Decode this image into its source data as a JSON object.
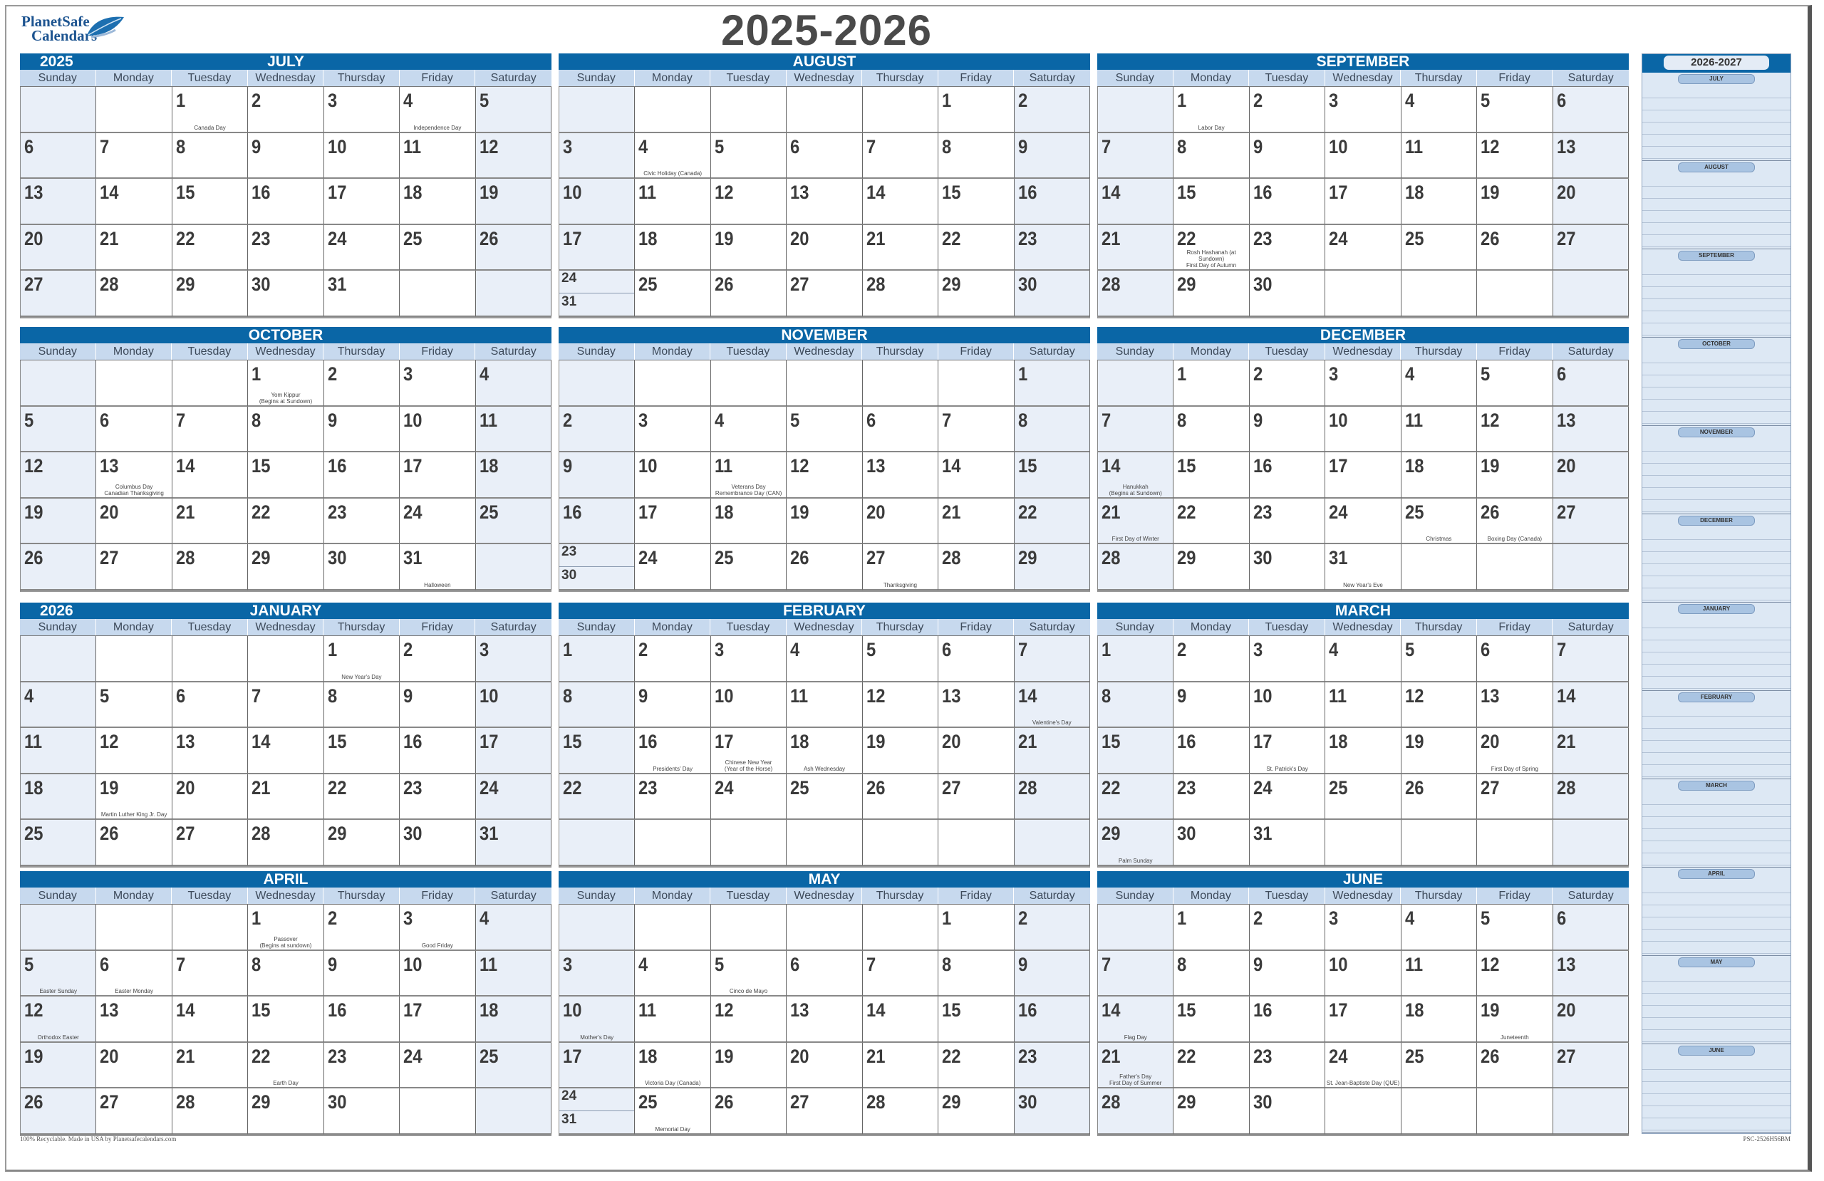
{
  "logo": {
    "line1": "PlanetSafe",
    "line2": "Calendars",
    "leaf_color": "#1d6fb0"
  },
  "title": "2025-2026",
  "colors": {
    "header_blue": "#0a66a6",
    "weekday_bar": "#c7d9ee",
    "weekend_cell": "#e9eff8",
    "sidebar_bg": "#dde8f4"
  },
  "weekdays": [
    "Sunday",
    "Monday",
    "Tuesday",
    "Wednesday",
    "Thursday",
    "Friday",
    "Saturday"
  ],
  "months": [
    {
      "name": "JULY",
      "year": "2025",
      "weeks": [
        [
          null,
          null,
          1,
          2,
          3,
          4,
          5
        ],
        [
          6,
          7,
          8,
          9,
          10,
          11,
          12
        ],
        [
          13,
          14,
          15,
          16,
          17,
          18,
          19
        ],
        [
          20,
          21,
          22,
          23,
          24,
          25,
          26
        ],
        [
          27,
          28,
          29,
          30,
          31,
          null,
          null
        ]
      ],
      "holidays": [
        {
          "day": 1,
          "text": "Canada Day"
        },
        {
          "day": 4,
          "text": "Independence Day"
        }
      ]
    },
    {
      "name": "AUGUST",
      "weeks": [
        [
          null,
          null,
          null,
          null,
          null,
          1,
          2
        ],
        [
          3,
          4,
          5,
          6,
          7,
          8,
          9
        ],
        [
          10,
          11,
          12,
          13,
          14,
          15,
          16
        ],
        [
          17,
          18,
          19,
          20,
          21,
          22,
          23
        ],
        [
          [
            24,
            31
          ],
          25,
          26,
          27,
          28,
          29,
          30
        ]
      ],
      "holidays": [
        {
          "day": 4,
          "text": "Civic Holiday (Canada)"
        }
      ]
    },
    {
      "name": "SEPTEMBER",
      "weeks": [
        [
          null,
          1,
          2,
          3,
          4,
          5,
          6
        ],
        [
          7,
          8,
          9,
          10,
          11,
          12,
          13
        ],
        [
          14,
          15,
          16,
          17,
          18,
          19,
          20
        ],
        [
          21,
          22,
          23,
          24,
          25,
          26,
          27
        ],
        [
          28,
          29,
          30,
          null,
          null,
          null,
          null
        ]
      ],
      "holidays": [
        {
          "day": 1,
          "text": "Labor Day"
        },
        {
          "day": 22,
          "text": "Rosh Hashanah (at Sundown)\nFirst Day of Autumn"
        }
      ]
    },
    {
      "name": "OCTOBER",
      "weeks": [
        [
          null,
          null,
          null,
          1,
          2,
          3,
          4
        ],
        [
          5,
          6,
          7,
          8,
          9,
          10,
          11
        ],
        [
          12,
          13,
          14,
          15,
          16,
          17,
          18
        ],
        [
          19,
          20,
          21,
          22,
          23,
          24,
          25
        ],
        [
          26,
          27,
          28,
          29,
          30,
          31,
          null
        ]
      ],
      "holidays": [
        {
          "day": 1,
          "text": "Yom Kippur\n(Begins at Sundown)"
        },
        {
          "day": 13,
          "text": "Columbus Day\nCanadian Thanksgiving"
        },
        {
          "day": 31,
          "text": "Halloween"
        }
      ]
    },
    {
      "name": "NOVEMBER",
      "weeks": [
        [
          null,
          null,
          null,
          null,
          null,
          null,
          1
        ],
        [
          2,
          3,
          4,
          5,
          6,
          7,
          8
        ],
        [
          9,
          10,
          11,
          12,
          13,
          14,
          15
        ],
        [
          16,
          17,
          18,
          19,
          20,
          21,
          22
        ],
        [
          [
            23,
            30
          ],
          24,
          25,
          26,
          27,
          28,
          29
        ]
      ],
      "holidays": [
        {
          "day": 11,
          "text": "Veterans Day\nRemembrance Day (CAN)"
        },
        {
          "day": 27,
          "text": "Thanksgiving"
        }
      ]
    },
    {
      "name": "DECEMBER",
      "weeks": [
        [
          null,
          1,
          2,
          3,
          4,
          5,
          6
        ],
        [
          7,
          8,
          9,
          10,
          11,
          12,
          13
        ],
        [
          14,
          15,
          16,
          17,
          18,
          19,
          20
        ],
        [
          21,
          22,
          23,
          24,
          25,
          26,
          27
        ],
        [
          28,
          29,
          30,
          31,
          null,
          null,
          null
        ]
      ],
      "holidays": [
        {
          "day": 14,
          "text": "Hanukkah\n(Begins at Sundown)"
        },
        {
          "day": 21,
          "text": "First Day of Winter"
        },
        {
          "day": 25,
          "text": "Christmas"
        },
        {
          "day": 26,
          "text": "Boxing Day (Canada)"
        },
        {
          "day": 31,
          "text": "New Year's Eve"
        }
      ]
    },
    {
      "name": "JANUARY",
      "year": "2026",
      "weeks": [
        [
          null,
          null,
          null,
          null,
          1,
          2,
          3
        ],
        [
          4,
          5,
          6,
          7,
          8,
          9,
          10
        ],
        [
          11,
          12,
          13,
          14,
          15,
          16,
          17
        ],
        [
          18,
          19,
          20,
          21,
          22,
          23,
          24
        ],
        [
          25,
          26,
          27,
          28,
          29,
          30,
          31
        ]
      ],
      "holidays": [
        {
          "day": 1,
          "text": "New Year's Day"
        },
        {
          "day": 19,
          "text": "Martin Luther King Jr. Day"
        }
      ]
    },
    {
      "name": "FEBRUARY",
      "weeks": [
        [
          1,
          2,
          3,
          4,
          5,
          6,
          7
        ],
        [
          8,
          9,
          10,
          11,
          12,
          13,
          14
        ],
        [
          15,
          16,
          17,
          18,
          19,
          20,
          21
        ],
        [
          22,
          23,
          24,
          25,
          26,
          27,
          28
        ],
        [
          null,
          null,
          null,
          null,
          null,
          null,
          null
        ]
      ],
      "holidays": [
        {
          "day": 14,
          "text": "Valentine's Day"
        },
        {
          "day": 16,
          "text": "Presidents' Day"
        },
        {
          "day": 17,
          "text": "Chinese New Year\n(Year of the Horse)"
        },
        {
          "day": 18,
          "text": "Ash Wednesday"
        }
      ]
    },
    {
      "name": "MARCH",
      "weeks": [
        [
          1,
          2,
          3,
          4,
          5,
          6,
          7
        ],
        [
          8,
          9,
          10,
          11,
          12,
          13,
          14
        ],
        [
          15,
          16,
          17,
          18,
          19,
          20,
          21
        ],
        [
          22,
          23,
          24,
          25,
          26,
          27,
          28
        ],
        [
          29,
          30,
          31,
          null,
          null,
          null,
          null
        ]
      ],
      "holidays": [
        {
          "day": 17,
          "text": "St. Patrick's Day"
        },
        {
          "day": 20,
          "text": "First Day of Spring"
        },
        {
          "day": 29,
          "text": "Palm Sunday"
        }
      ]
    },
    {
      "name": "APRIL",
      "weeks": [
        [
          null,
          null,
          null,
          1,
          2,
          3,
          4
        ],
        [
          5,
          6,
          7,
          8,
          9,
          10,
          11
        ],
        [
          12,
          13,
          14,
          15,
          16,
          17,
          18
        ],
        [
          19,
          20,
          21,
          22,
          23,
          24,
          25
        ],
        [
          26,
          27,
          28,
          29,
          30,
          null,
          null
        ]
      ],
      "holidays": [
        {
          "day": 1,
          "text": "Passover\n(Begins at sundown)"
        },
        {
          "day": 3,
          "text": "Good Friday"
        },
        {
          "day": 5,
          "text": "Easter Sunday"
        },
        {
          "day": 6,
          "text": "Easter Monday"
        },
        {
          "day": 12,
          "text": "Orthodox Easter"
        },
        {
          "day": 22,
          "text": "Earth Day"
        }
      ]
    },
    {
      "name": "MAY",
      "weeks": [
        [
          null,
          null,
          null,
          null,
          null,
          1,
          2
        ],
        [
          3,
          4,
          5,
          6,
          7,
          8,
          9
        ],
        [
          10,
          11,
          12,
          13,
          14,
          15,
          16
        ],
        [
          17,
          18,
          19,
          20,
          21,
          22,
          23
        ],
        [
          [
            24,
            31
          ],
          25,
          26,
          27,
          28,
          29,
          30
        ]
      ],
      "holidays": [
        {
          "day": 5,
          "text": "Cinco de Mayo"
        },
        {
          "day": 10,
          "text": "Mother's Day"
        },
        {
          "day": 18,
          "text": "Victoria Day (Canada)"
        },
        {
          "day": 25,
          "text": "Memorial Day"
        }
      ]
    },
    {
      "name": "JUNE",
      "weeks": [
        [
          null,
          1,
          2,
          3,
          4,
          5,
          6
        ],
        [
          7,
          8,
          9,
          10,
          11,
          12,
          13
        ],
        [
          14,
          15,
          16,
          17,
          18,
          19,
          20
        ],
        [
          21,
          22,
          23,
          24,
          25,
          26,
          27
        ],
        [
          28,
          29,
          30,
          null,
          null,
          null,
          null
        ]
      ],
      "holidays": [
        {
          "day": 14,
          "text": "Flag Day"
        },
        {
          "day": 19,
          "text": "Juneteenth"
        },
        {
          "day": 21,
          "text": "Father's Day\nFirst Day of Summer"
        },
        {
          "day": 24,
          "text": "St. Jean-Baptiste Day (QUE)"
        }
      ]
    }
  ],
  "sidebar": {
    "year": "2026-2027",
    "months": [
      "JULY",
      "AUGUST",
      "SEPTEMBER",
      "OCTOBER",
      "NOVEMBER",
      "DECEMBER",
      "JANUARY",
      "FEBRUARY",
      "MARCH",
      "APRIL",
      "MAY",
      "JUNE"
    ]
  },
  "footer": {
    "left": "100% Recyclable. Made in USA by Planetsafecalendars.com",
    "right": "PSC-2526H56BM"
  }
}
